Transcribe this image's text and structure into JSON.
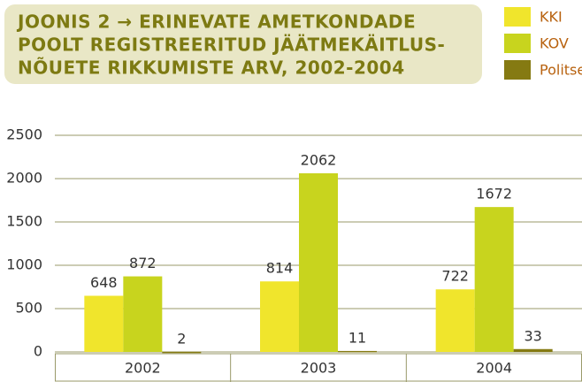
{
  "chart_data": {
    "type": "bar",
    "title": [
      "JOONIS 2 → ERINEVATE AMETKONDADE",
      "POOLT REGISTREERITUD JÄÄTMEKÄITLUS-",
      "NÕUETE RIKKUMISTE ARV, 2002-2004"
    ],
    "categories": [
      "2002",
      "2003",
      "2004"
    ],
    "series": [
      {
        "name": "KKI",
        "color": "#f0e52c",
        "values": [
          648,
          814,
          722
        ]
      },
      {
        "name": "KOV",
        "color": "#c8d41e",
        "values": [
          872,
          2062,
          1672
        ]
      },
      {
        "name": "Politsei",
        "color": "#857a12",
        "values": [
          2,
          11,
          33
        ]
      }
    ],
    "ylim": [
      0,
      2500
    ],
    "yticks": [
      0,
      500,
      1000,
      1500,
      2000,
      2500
    ],
    "grid": true
  }
}
